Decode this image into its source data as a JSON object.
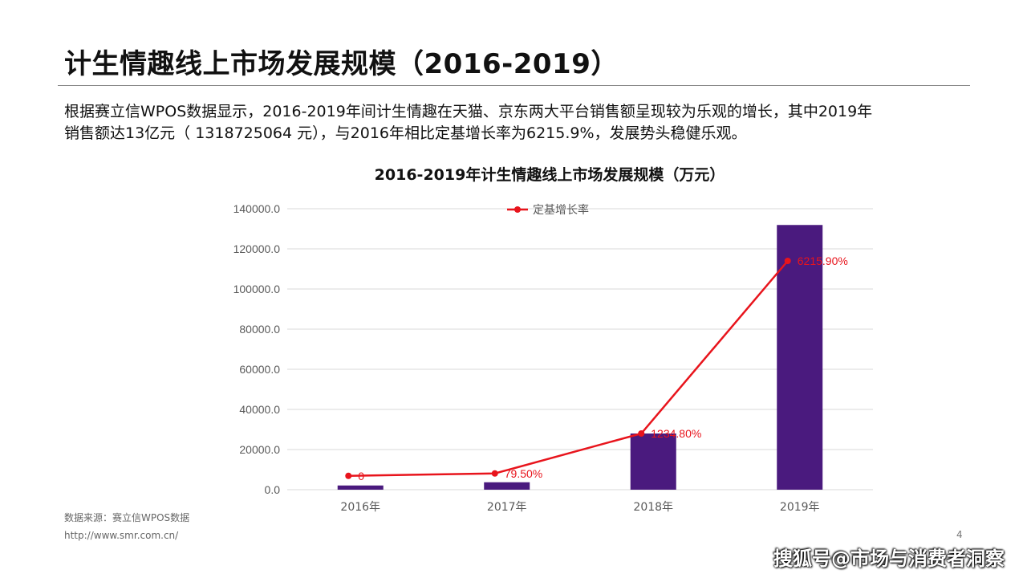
{
  "slide": {
    "title": "计生情趣线上市场发展规模（2016-2019）",
    "description_line1": "根据赛立信WPOS数据显示，2016-2019年间计生情趣在天猫、京东两大平台销售额呈现较为乐观的增长，其中2019年",
    "description_line2": "销售额达13亿元（ 1318725064 元），与2016年相比定基增长率为6215.9%，发展势头稳健乐观。",
    "source": "数据来源：赛立信WPOS数据",
    "url": "http://www.smr.com.cn/",
    "page_number": "4",
    "watermark": "搜狐号@市场与消费者洞察"
  },
  "colors": {
    "bar": "#4a1a7e",
    "line": "#e8141c",
    "grid": "#d9d9d9",
    "axis_text": "#595959"
  },
  "chart_data": {
    "type": "bar+line",
    "title": "2016-2019年计生情趣线上市场发展规模（万元）",
    "categories": [
      "2016年",
      "2017年",
      "2018年",
      "2019年"
    ],
    "ylim": [
      0,
      140000
    ],
    "y_ticks": [
      "140000.0",
      "120000.0",
      "100000.0",
      "80000.0",
      "60000.0",
      "40000.0",
      "20000.0",
      "0.0"
    ],
    "y_tick_values": [
      140000,
      120000,
      100000,
      80000,
      60000,
      40000,
      20000,
      0
    ],
    "bars": {
      "values": [
        2100,
        3700,
        28000,
        131900
      ]
    },
    "line": {
      "name": "定基增长率",
      "values": [
        0,
        79.5,
        1234.8,
        6215.9
      ],
      "labels": [
        "0",
        "79.50%",
        "1234.80%",
        "6215.90%"
      ],
      "plot_positions": [
        6900,
        8100,
        28000,
        114000
      ]
    },
    "legend_position": "top",
    "grid": true
  }
}
